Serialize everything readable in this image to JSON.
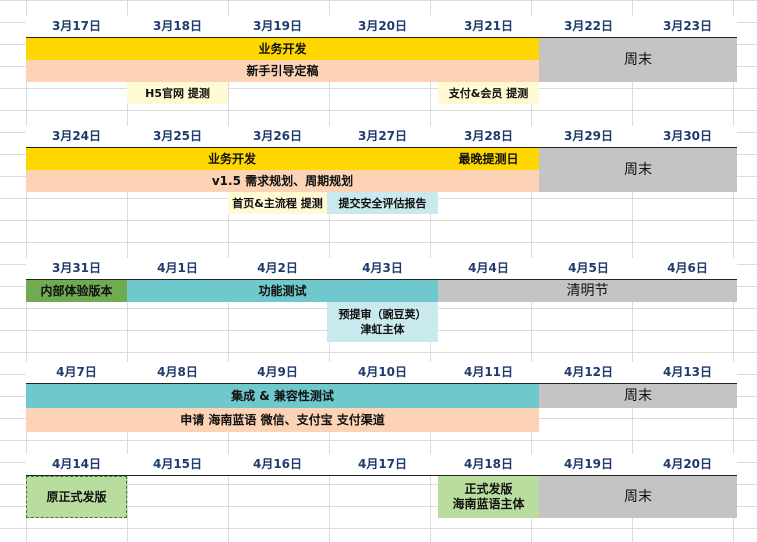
{
  "weeks": [
    {
      "dates": [
        "3月17日",
        "3月18日",
        "3月19日",
        "3月20日",
        "3月21日",
        "3月22日",
        "3月23日"
      ],
      "tasks": {
        "biz_dev": "业务开发",
        "onboarding": "新手引导定稿",
        "weekend": "周末",
        "h5_submit": "H5官网 提测",
        "pay_member": "支付&会员 提测"
      }
    },
    {
      "dates": [
        "3月24日",
        "3月25日",
        "3月26日",
        "3月27日",
        "3月28日",
        "3月29日",
        "3月30日"
      ],
      "tasks": {
        "biz_dev": "业务开发",
        "latest_test": "最晚提测日",
        "planning": "v1.5 需求规划、周期规划",
        "weekend": "周末",
        "home_flow": "首页&主流程 提测",
        "security": "提交安全评估报告"
      }
    },
    {
      "dates": [
        "3月31日",
        "4月1日",
        "4月2日",
        "4月3日",
        "4月4日",
        "4月5日",
        "4月6日"
      ],
      "tasks": {
        "internal": "内部体验版本",
        "func_test": "功能测试",
        "qingming": "清明节",
        "pre_review": "预提审（豌豆荚）\n津虹主体"
      }
    },
    {
      "dates": [
        "4月7日",
        "4月8日",
        "4月9日",
        "4月10日",
        "4月11日",
        "4月12日",
        "4月13日"
      ],
      "tasks": {
        "integration": "集成 & 兼容性测试",
        "weekend": "周末",
        "apply": "申请 海南蓝语 微信、支付宝 支付渠道"
      }
    },
    {
      "dates": [
        "4月14日",
        "4月15日",
        "4月16日",
        "4月17日",
        "4月18日",
        "4月19日",
        "4月20日"
      ],
      "tasks": {
        "orig_release": "原正式发版",
        "release": "正式发版\n海南蓝语主体",
        "weekend": "周末"
      }
    }
  ]
}
